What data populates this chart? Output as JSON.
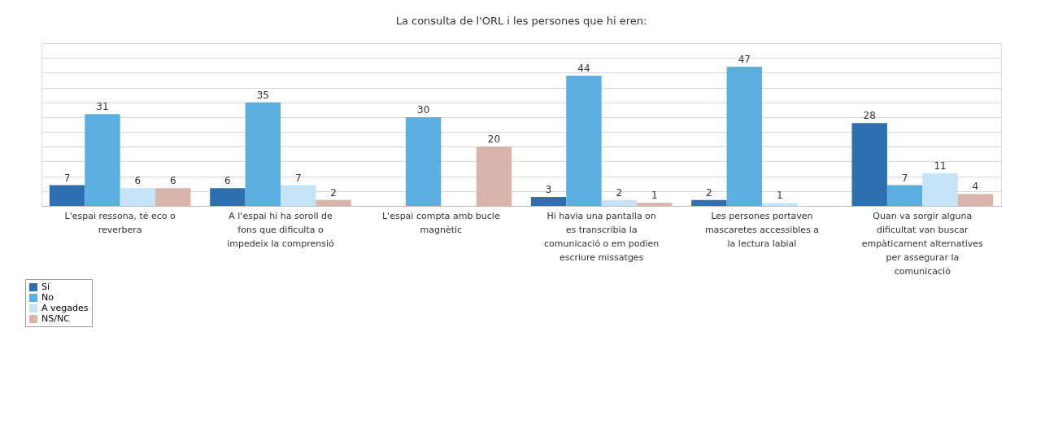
{
  "chart_data": {
    "type": "bar",
    "title": "La consulta de l'ORL i les persones que hi eren:",
    "categories": [
      "L'espai ressona, té eco o reverbera",
      "A l'espai hi ha soroll de fons que dificulta o impedeix la comprensió",
      "L'espai compta amb bucle magnètic",
      "Hi havia una pantalla on es transcribia la comunicació o em podien escriure missatges",
      "Les persones portaven mascaretes accessibles a la lectura labial",
      "Quan va sorgir alguna dificultat van buscar empàticament alternatives per assegurar la comunicació"
    ],
    "series": [
      {
        "name": "Sí",
        "color": "#2e6fb0",
        "values": [
          7,
          6,
          null,
          3,
          2,
          28
        ]
      },
      {
        "name": "No",
        "color": "#5aaee0",
        "values": [
          31,
          35,
          30,
          44,
          47,
          7
        ]
      },
      {
        "name": "A vegades",
        "color": "#c6e4f7",
        "values": [
          6,
          7,
          null,
          2,
          1,
          11
        ]
      },
      {
        "name": "NS/NC",
        "color": "#d8b4ab",
        "values": [
          6,
          2,
          20,
          1,
          null,
          4
        ]
      }
    ],
    "ylim": [
      0,
      55
    ],
    "tick_labels": "x",
    "grid": "y",
    "legend": "bottom left",
    "data_labels": true
  }
}
